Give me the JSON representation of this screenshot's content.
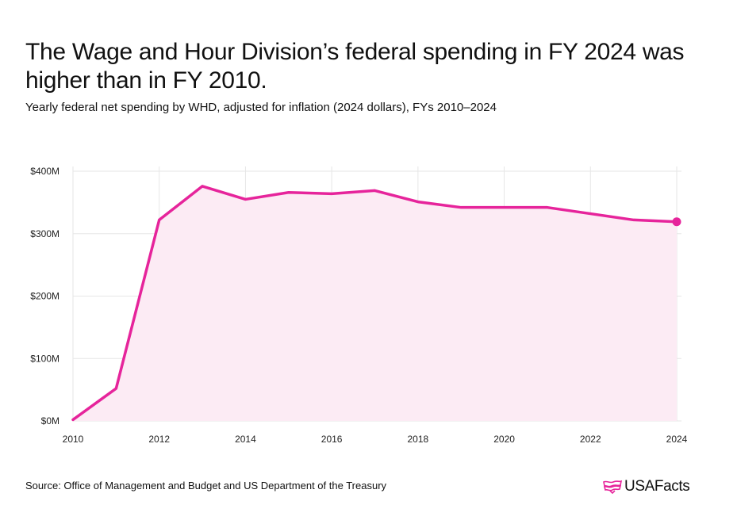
{
  "header": {
    "title": "The Wage and Hour Division’s federal spending in FY 2024 was higher than in FY 2010.",
    "subtitle": "Yearly federal net spending by WHD, adjusted for inflation (2024 dollars), FYs 2010–2024"
  },
  "footer": {
    "source": "Source: Office of Management and Budget and US Department of the Treasury",
    "logo_text": "USAFacts"
  },
  "colors": {
    "line": "#e6249b",
    "area": "#fcebf4",
    "grid": "#e6e6e6"
  },
  "chart_data": {
    "type": "area",
    "title": "The Wage and Hour Division’s federal spending in FY 2024 was higher than in FY 2010.",
    "subtitle": "Yearly federal net spending by WHD, adjusted for inflation (2024 dollars), FYs 2010–2024",
    "xlabel": "",
    "ylabel": "",
    "x": [
      2010,
      2011,
      2012,
      2013,
      2014,
      2015,
      2016,
      2017,
      2018,
      2019,
      2020,
      2021,
      2022,
      2023,
      2024
    ],
    "series": [
      {
        "values": [
          2,
          52,
          322,
          376,
          355,
          366,
          364,
          369,
          351,
          342,
          342,
          342,
          332,
          322,
          319
        ]
      }
    ],
    "unit": "millions of dollars",
    "xlim": [
      2010,
      2024
    ],
    "ylim": [
      0,
      400
    ],
    "x_ticks": [
      2010,
      2012,
      2014,
      2016,
      2018,
      2020,
      2022,
      2024
    ],
    "x_tick_labels": [
      "2010",
      "2012",
      "2014",
      "2016",
      "2018",
      "2020",
      "2022",
      "2024"
    ],
    "y_ticks": [
      0,
      100,
      200,
      300,
      400
    ],
    "y_tick_labels": [
      "$0M",
      "$100M",
      "$200M",
      "$300M",
      "$400M"
    ],
    "grid": true,
    "legend": "none",
    "end_marker": true
  }
}
